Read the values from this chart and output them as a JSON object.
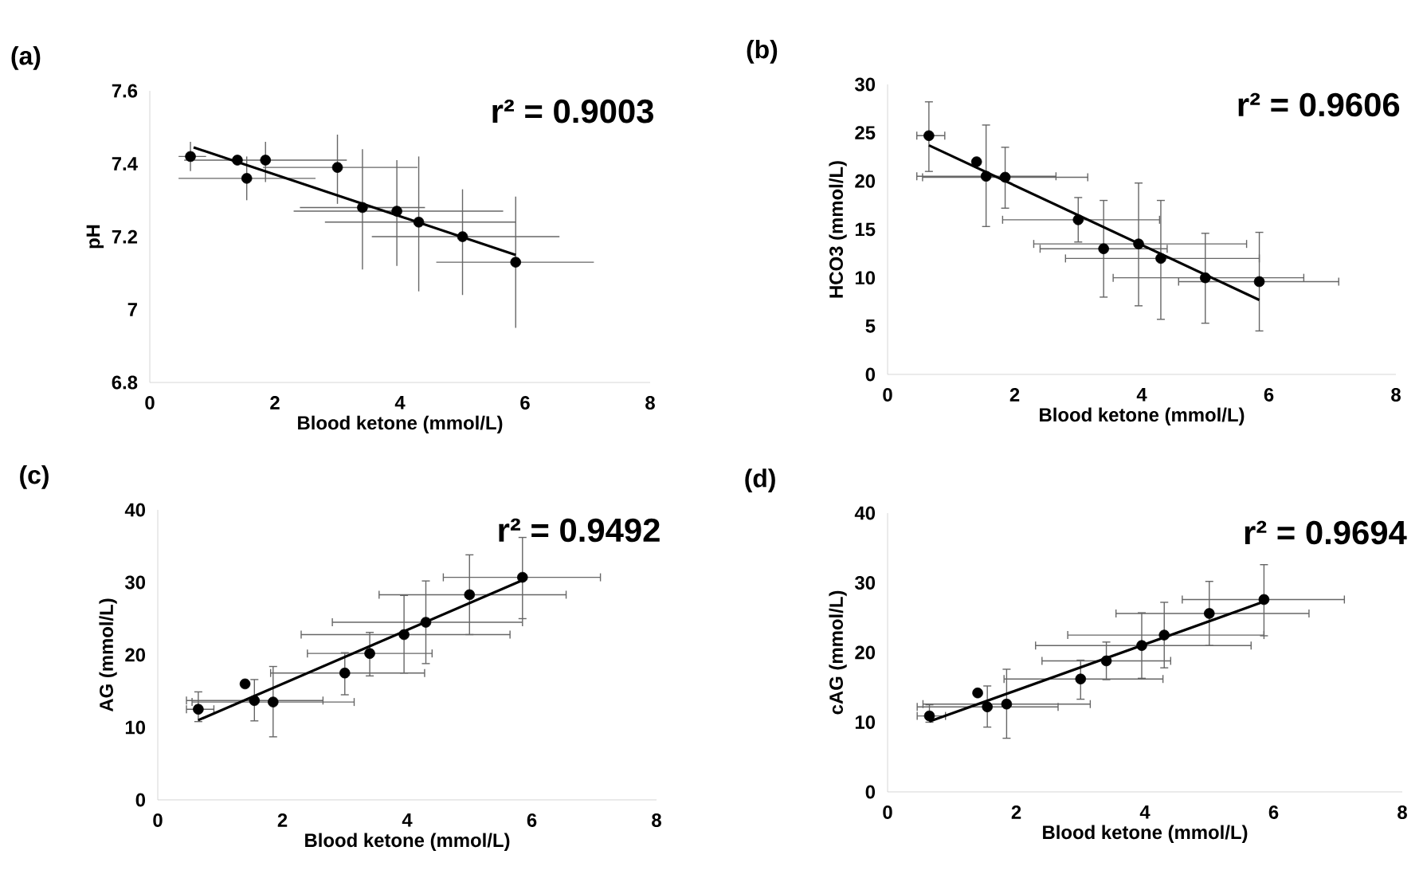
{
  "chart_data": [
    {
      "type": "scatter",
      "title": "(a)",
      "xlabel": "Blood ketone (mmol/L)",
      "ylabel": "pH",
      "annotations": [
        "r² = 0.9003"
      ],
      "xlim": [
        0,
        8
      ],
      "xticks": [
        0,
        2,
        4,
        6,
        8
      ],
      "ylim": [
        6.8,
        7.6
      ],
      "yticks": [
        6.8,
        7,
        7.2,
        7.4,
        7.6
      ],
      "series": [
        {
          "marker": "circle",
          "color": "#000000",
          "x": [
            0.65,
            1.4,
            1.55,
            1.85,
            3.0,
            3.4,
            3.95,
            4.3,
            5.0,
            5.85
          ],
          "values": [
            7.42,
            7.41,
            7.36,
            7.41,
            7.39,
            7.28,
            7.27,
            7.24,
            7.2,
            7.13
          ],
          "errors": [
            [
              7.38,
              7.46
            ],
            null,
            [
              7.3,
              7.42
            ],
            [
              7.35,
              7.46
            ],
            [
              7.29,
              7.48
            ],
            [
              7.11,
              7.44
            ],
            [
              7.12,
              7.41
            ],
            [
              7.05,
              7.42
            ],
            [
              7.04,
              7.33
            ],
            [
              6.95,
              7.31
            ]
          ],
          "xerrors": [
            [
              0.46,
              0.9
            ],
            null,
            [
              0.46,
              2.65
            ],
            [
              0.55,
              3.15
            ],
            [
              1.81,
              4.28
            ],
            [
              2.4,
              4.4
            ],
            [
              2.3,
              5.65
            ],
            [
              2.8,
              5.85
            ],
            [
              3.55,
              6.55
            ],
            [
              4.58,
              7.1
            ]
          ]
        },
        {
          "type": "line",
          "marker": "none",
          "color": "#000000",
          "x": [
            0.7,
            5.85
          ],
          "values": [
            7.445,
            7.15
          ]
        }
      ]
    },
    {
      "type": "scatter",
      "title": "(b)",
      "xlabel": "Blood ketone (mmol/L)",
      "ylabel": "HCO3 (mmol/L)",
      "annotations": [
        "r² = 0.9606"
      ],
      "xlim": [
        0,
        8
      ],
      "xticks": [
        0,
        2,
        4,
        6,
        8
      ],
      "ylim": [
        0,
        30
      ],
      "yticks": [
        0,
        5,
        10,
        15,
        20,
        25,
        30
      ],
      "series": [
        {
          "marker": "circle",
          "color": "#000000",
          "x": [
            0.65,
            1.4,
            1.55,
            1.85,
            3.0,
            3.4,
            3.95,
            4.3,
            5.0,
            5.85
          ],
          "values": [
            24.7,
            22,
            20.5,
            20.4,
            16,
            13,
            13.5,
            12,
            10,
            9.6
          ],
          "errors": [
            [
              21,
              28.2
            ],
            null,
            [
              15.3,
              25.8
            ],
            [
              17.2,
              23.5
            ],
            [
              13.7,
              18.3
            ],
            [
              8,
              18
            ],
            [
              7.1,
              19.8
            ],
            [
              5.7,
              18
            ],
            [
              5.3,
              14.6
            ],
            [
              4.5,
              14.7
            ]
          ],
          "xerrors": [
            [
              0.46,
              0.9
            ],
            null,
            [
              0.46,
              2.65
            ],
            [
              0.55,
              3.15
            ],
            [
              1.81,
              4.28
            ],
            [
              2.4,
              4.4
            ],
            [
              2.3,
              5.65
            ],
            [
              2.8,
              5.85
            ],
            [
              3.55,
              6.55
            ],
            [
              4.58,
              7.1
            ]
          ]
        },
        {
          "type": "line",
          "marker": "none",
          "color": "#000000",
          "x": [
            0.65,
            5.85
          ],
          "values": [
            23.7,
            7.7
          ]
        }
      ]
    },
    {
      "type": "scatter",
      "title": "(c)",
      "xlabel": "Blood ketone (mmol/L)",
      "ylabel": "AG (mmol/L)",
      "annotations": [
        "r² = 0.9492"
      ],
      "xlim": [
        0,
        8
      ],
      "xticks": [
        0,
        2,
        4,
        6,
        8
      ],
      "ylim": [
        0,
        40
      ],
      "yticks": [
        0,
        10,
        20,
        30,
        40
      ],
      "series": [
        {
          "marker": "circle",
          "color": "#000000",
          "x": [
            0.65,
            1.4,
            1.55,
            1.85,
            3.0,
            3.4,
            3.95,
            4.3,
            5.0,
            5.85
          ],
          "values": [
            12.5,
            16,
            13.7,
            13.5,
            17.5,
            20.2,
            22.8,
            24.5,
            28.3,
            30.7
          ],
          "errors": [
            [
              10.8,
              14.9
            ],
            null,
            [
              10.9,
              16.6
            ],
            [
              8.7,
              18.4
            ],
            [
              14.5,
              20.3
            ],
            [
              17.1,
              23.1
            ],
            [
              17.5,
              28.2
            ],
            [
              18.8,
              30.2
            ],
            [
              22.8,
              33.8
            ],
            [
              25,
              36.2
            ]
          ],
          "xerrors": [
            [
              0.46,
              0.9
            ],
            null,
            [
              0.46,
              2.65
            ],
            [
              0.55,
              3.15
            ],
            [
              1.81,
              4.28
            ],
            [
              2.4,
              4.4
            ],
            [
              2.3,
              5.65
            ],
            [
              2.8,
              5.85
            ],
            [
              3.55,
              6.55
            ],
            [
              4.58,
              7.1
            ]
          ]
        },
        {
          "type": "line",
          "marker": "none",
          "color": "#000000",
          "x": [
            0.65,
            5.85
          ],
          "values": [
            11,
            30.3
          ]
        }
      ]
    },
    {
      "type": "scatter",
      "title": "(d)",
      "xlabel": "Blood ketone (mmol/L)",
      "ylabel": "cAG (mmol/L)",
      "annotations": [
        "r² = 0.9694"
      ],
      "xlim": [
        0,
        8
      ],
      "xticks": [
        0,
        2,
        4,
        6,
        8
      ],
      "ylim": [
        0,
        40
      ],
      "yticks": [
        0,
        10,
        20,
        30,
        40
      ],
      "series": [
        {
          "marker": "circle",
          "color": "#000000",
          "x": [
            0.65,
            1.4,
            1.55,
            1.85,
            3.0,
            3.4,
            3.95,
            4.3,
            5.0,
            5.85
          ],
          "values": [
            10.9,
            14.2,
            12.2,
            12.6,
            16.2,
            18.8,
            21,
            22.5,
            25.6,
            27.6
          ],
          "errors": [
            [
              10,
              12.5
            ],
            null,
            [
              9.3,
              15.2
            ],
            [
              7.7,
              17.6
            ],
            [
              13.3,
              18.9
            ],
            [
              16.1,
              21.5
            ],
            [
              16.3,
              25.7
            ],
            [
              17.8,
              27.2
            ],
            [
              21,
              30.2
            ],
            [
              22.4,
              32.6
            ]
          ],
          "xerrors": [
            [
              0.46,
              0.9
            ],
            null,
            [
              0.46,
              2.65
            ],
            [
              0.55,
              3.15
            ],
            [
              1.81,
              4.28
            ],
            [
              2.4,
              4.4
            ],
            [
              2.3,
              5.65
            ],
            [
              2.8,
              5.85
            ],
            [
              3.55,
              6.55
            ],
            [
              4.58,
              7.1
            ]
          ]
        },
        {
          "type": "line",
          "marker": "none",
          "color": "#000000",
          "x": [
            0.65,
            5.85
          ],
          "values": [
            10.1,
            27.3
          ]
        }
      ]
    }
  ]
}
